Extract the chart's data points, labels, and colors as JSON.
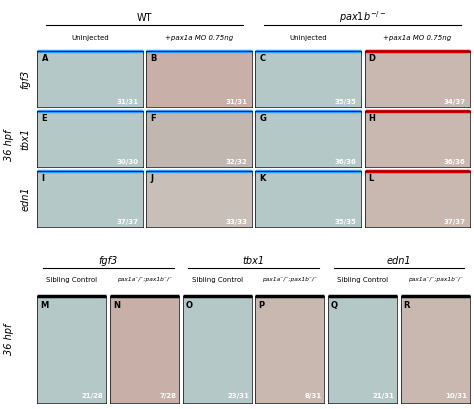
{
  "fig_width": 4.74,
  "fig_height": 4.09,
  "dpi": 100,
  "bg_color": "#ffffff",
  "top_section": {
    "col_headers_top": [
      "WT",
      "pax1b⁻/⁻"
    ],
    "col_headers_sub": [
      "Uninjected",
      "+pax1a MO 0.75ng",
      "Uninjected",
      "+pax1a MO 0.75ng"
    ],
    "row_labels": [
      "fgf3",
      "tbx1",
      "edn1"
    ],
    "cell_labels": [
      "A",
      "B",
      "C",
      "D",
      "E",
      "F",
      "G",
      "H",
      "I",
      "J",
      "K",
      "L"
    ],
    "cell_counts": [
      "31/31",
      "31/31",
      "35/35",
      "34/37",
      "30/30",
      "32/32",
      "36/36",
      "36/36",
      "37/37",
      "33/33",
      "35/35",
      "37/37"
    ],
    "blue_color": "#3399ff",
    "red_color": "#cc0000"
  },
  "bottom_section": {
    "group_headers": [
      "fgf3",
      "tbx1",
      "edn1"
    ],
    "col_headers_sub": [
      "Sibling Control",
      "pax1a⁻/⁻;pax1b⁻/⁻",
      "Sibling Control",
      "pax1a⁻/⁻;pax1b⁻/⁻",
      "Sibling Control",
      "pax1a⁻/⁻;pax1b⁻/⁻"
    ],
    "row_label": "36 hpf",
    "cell_labels": [
      "M",
      "N",
      "O",
      "P",
      "Q",
      "R"
    ],
    "cell_counts": [
      "21/28",
      "7/28",
      "23/31",
      "8/31",
      "21/31",
      "10/31"
    ]
  }
}
